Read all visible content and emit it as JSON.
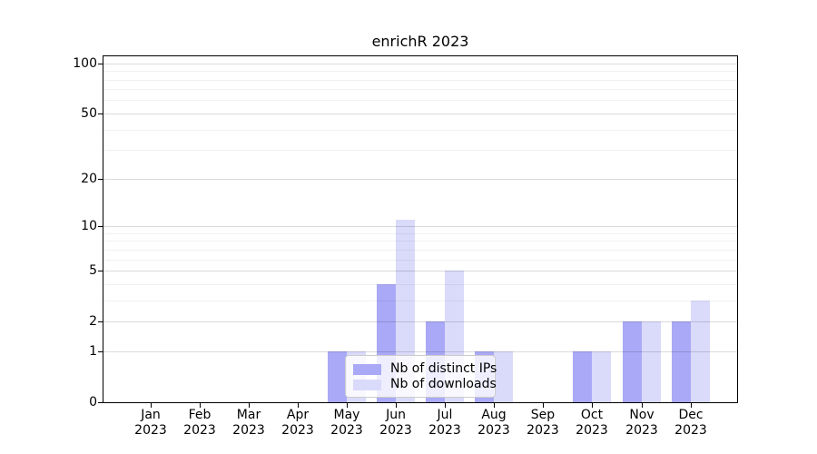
{
  "title": "enrichR 2023",
  "chart_data": {
    "type": "bar",
    "title": "enrichR 2023",
    "categories": [
      "Jan 2023",
      "Feb 2023",
      "Mar 2023",
      "Apr 2023",
      "May 2023",
      "Jun 2023",
      "Jul 2023",
      "Aug 2023",
      "Sep 2023",
      "Oct 2023",
      "Nov 2023",
      "Dec 2023"
    ],
    "series": [
      {
        "name": "Nb of distinct IPs",
        "color": "#a9a9f7",
        "values": [
          0,
          0,
          0,
          0,
          1,
          4,
          2,
          1,
          0,
          1,
          2,
          2
        ]
      },
      {
        "name": "Nb of downloads",
        "color": "#dadafa",
        "values": [
          0,
          0,
          0,
          0,
          1,
          11,
          5,
          1,
          0,
          1,
          2,
          3
        ]
      }
    ],
    "xlabel": "",
    "ylabel": "",
    "y_scale": "log10(value+1)",
    "y_ticks": [
      0,
      1,
      2,
      5,
      10,
      20,
      50,
      100
    ],
    "y_minor_ticks": [
      3,
      4,
      6,
      7,
      8,
      9,
      30,
      40,
      60,
      70,
      80,
      90
    ],
    "ylim": [
      0,
      110
    ],
    "grid": true,
    "legend_position": "lower center"
  },
  "colors": {
    "ips_bar": "#a9a9f7",
    "downloads_bar": "#dadafa",
    "axis": "#000000",
    "grid_major": "#d9d9d9",
    "grid_minor": "#f0f0f0",
    "legend_border": "#cccccc",
    "background": "#ffffff"
  }
}
